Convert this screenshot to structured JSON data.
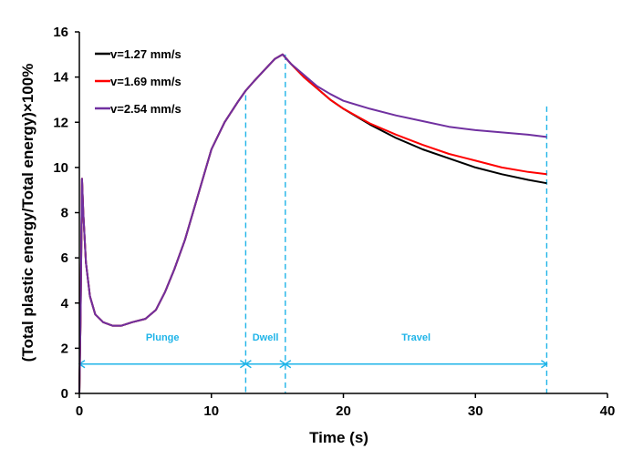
{
  "chart_data": {
    "type": "line",
    "title": "",
    "xlabel": "Time (s)",
    "ylabel": "(Total plastic energy/Total energy)×100%",
    "xlim": [
      0,
      40
    ],
    "ylim": [
      0,
      16
    ],
    "xticks": [
      0,
      10,
      20,
      30,
      40
    ],
    "yticks": [
      0,
      2,
      4,
      6,
      8,
      10,
      12,
      14,
      16
    ],
    "xtick_labels": [
      "0",
      "10",
      "20",
      "30",
      "40"
    ],
    "ytick_labels": [
      "0",
      "2",
      "4",
      "6",
      "8",
      "10",
      "12",
      "14",
      "16"
    ],
    "grid": false,
    "legend_position": "top-left",
    "series": [
      {
        "name": "v=1.27 mm/s",
        "color": "#000000",
        "x": [
          0,
          0.1,
          0.2,
          0.3,
          0.5,
          0.8,
          1.2,
          1.8,
          2.5,
          3.2,
          4.0,
          5.0,
          5.8,
          6.5,
          7.2,
          8.0,
          9.0,
          10.0,
          11.0,
          12.0,
          12.6,
          13.2,
          14.0,
          14.8,
          15.4,
          16.0,
          17.0,
          18.0,
          19.0,
          20.0,
          22.0,
          24.0,
          26.0,
          28.0,
          30.0,
          32.0,
          34.0,
          35.4
        ],
        "y": [
          0,
          3.5,
          9.5,
          8.0,
          5.8,
          4.3,
          3.5,
          3.15,
          3.0,
          3.0,
          3.15,
          3.3,
          3.7,
          4.5,
          5.5,
          6.8,
          8.8,
          10.8,
          12.0,
          12.9,
          13.4,
          13.8,
          14.3,
          14.8,
          15.0,
          14.6,
          14.0,
          13.5,
          13.0,
          12.6,
          11.9,
          11.3,
          10.8,
          10.4,
          10.0,
          9.7,
          9.45,
          9.3
        ]
      },
      {
        "name": "v=1.69 mm/s",
        "color": "#ff0000",
        "x": [
          0,
          0.1,
          0.2,
          0.3,
          0.5,
          0.8,
          1.2,
          1.8,
          2.5,
          3.2,
          4.0,
          5.0,
          5.8,
          6.5,
          7.2,
          8.0,
          9.0,
          10.0,
          11.0,
          12.0,
          12.6,
          13.2,
          14.0,
          14.8,
          15.4,
          16.0,
          17.0,
          18.0,
          19.0,
          20.0,
          22.0,
          24.0,
          26.0,
          28.0,
          30.0,
          32.0,
          34.0,
          35.4
        ],
        "y": [
          0,
          3.5,
          9.5,
          8.0,
          5.8,
          4.3,
          3.5,
          3.15,
          3.0,
          3.0,
          3.15,
          3.3,
          3.7,
          4.5,
          5.5,
          6.8,
          8.8,
          10.8,
          12.0,
          12.9,
          13.4,
          13.8,
          14.3,
          14.8,
          15.0,
          14.6,
          14.0,
          13.5,
          13.0,
          12.6,
          11.95,
          11.45,
          11.0,
          10.6,
          10.3,
          10.0,
          9.8,
          9.7
        ]
      },
      {
        "name": "v=2.54 mm/s",
        "color": "#7030a0",
        "x": [
          0,
          0.1,
          0.2,
          0.3,
          0.5,
          0.8,
          1.2,
          1.8,
          2.5,
          3.2,
          4.0,
          5.0,
          5.8,
          6.5,
          7.2,
          8.0,
          9.0,
          10.0,
          11.0,
          12.0,
          12.6,
          13.2,
          14.0,
          14.8,
          15.4,
          16.0,
          17.0,
          18.0,
          19.0,
          20.0,
          22.0,
          24.0,
          26.0,
          28.0,
          30.0,
          32.0,
          34.0,
          35.4
        ],
        "y": [
          0,
          3.5,
          9.5,
          8.0,
          5.8,
          4.3,
          3.5,
          3.15,
          3.0,
          3.0,
          3.15,
          3.3,
          3.7,
          4.5,
          5.5,
          6.8,
          8.8,
          10.8,
          12.0,
          12.9,
          13.4,
          13.8,
          14.3,
          14.8,
          15.0,
          14.6,
          14.1,
          13.6,
          13.25,
          12.95,
          12.6,
          12.3,
          12.05,
          11.8,
          11.65,
          11.55,
          11.45,
          11.35
        ]
      }
    ],
    "annotations": {
      "color": "#1fb4e8",
      "vertical_lines_x": [
        12.6,
        15.6,
        35.4
      ],
      "vertical_lines_top_y": [
        13.2,
        15.0,
        12.7
      ],
      "arrow_y": 1.3,
      "phases": [
        {
          "label": "Plunge",
          "x_start": 0,
          "x_end": 12.6
        },
        {
          "label": "Dwell",
          "x_start": 12.6,
          "x_end": 15.6
        },
        {
          "label": "Travel",
          "x_start": 15.6,
          "x_end": 35.4
        }
      ],
      "phase_label_y": 2.5
    }
  }
}
